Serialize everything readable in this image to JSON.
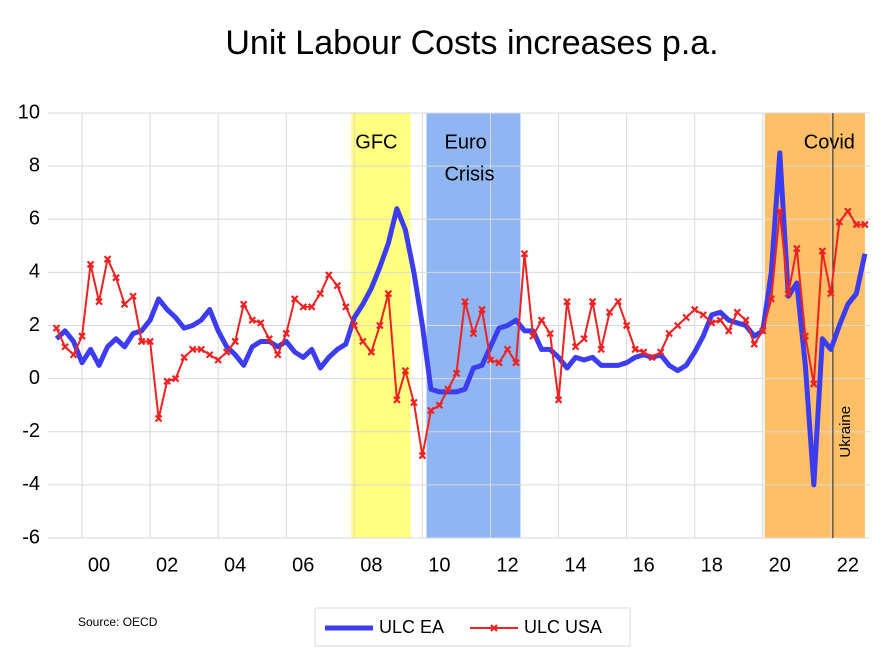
{
  "chart_data": {
    "type": "line",
    "title": "Unit Labour Costs increases p.a.",
    "source": "Source: OECD",
    "x": [
      1999.25,
      1999.5,
      1999.75,
      2000,
      2000.25,
      2000.5,
      2000.75,
      2001,
      2001.25,
      2001.5,
      2001.75,
      2002,
      2002.25,
      2002.5,
      2002.75,
      2003,
      2003.25,
      2003.5,
      2003.75,
      2004,
      2004.25,
      2004.5,
      2004.75,
      2005,
      2005.25,
      2005.5,
      2005.75,
      2006,
      2006.25,
      2006.5,
      2006.75,
      2007,
      2007.25,
      2007.5,
      2007.75,
      2008,
      2008.25,
      2008.5,
      2008.75,
      2009,
      2009.25,
      2009.5,
      2009.75,
      2010,
      2010.25,
      2010.5,
      2010.75,
      2011,
      2011.25,
      2011.5,
      2011.75,
      2012,
      2012.25,
      2012.5,
      2012.75,
      2013,
      2013.25,
      2013.5,
      2013.75,
      2014,
      2014.25,
      2014.5,
      2014.75,
      2015,
      2015.25,
      2015.5,
      2015.75,
      2016,
      2016.25,
      2016.5,
      2016.75,
      2017,
      2017.25,
      2017.5,
      2017.75,
      2018,
      2018.25,
      2018.5,
      2018.75,
      2019,
      2019.25,
      2019.5,
      2019.75,
      2020,
      2020.25,
      2020.5,
      2020.75,
      2021,
      2021.25,
      2021.5,
      2021.75,
      2022,
      2022.25,
      2022.5,
      2022.75,
      2023
    ],
    "series": [
      {
        "name": "ULC EA",
        "color": "#3c3cf0",
        "width": 5,
        "marker": null,
        "values": [
          1.5,
          1.8,
          1.4,
          0.6,
          1.1,
          0.5,
          1.2,
          1.5,
          1.2,
          1.7,
          1.8,
          2.2,
          3.0,
          2.6,
          2.3,
          1.9,
          2.0,
          2.2,
          2.6,
          1.8,
          1.2,
          0.9,
          0.5,
          1.2,
          1.4,
          1.4,
          1.2,
          1.4,
          1.0,
          0.8,
          1.1,
          0.4,
          0.8,
          1.1,
          1.3,
          2.3,
          2.8,
          3.4,
          4.2,
          5.1,
          6.4,
          5.6,
          4.0,
          2.0,
          -0.4,
          -0.5,
          -0.5,
          -0.5,
          -0.4,
          0.4,
          0.5,
          1.2,
          1.9,
          2.0,
          2.2,
          1.8,
          1.8,
          1.1,
          1.1,
          0.8,
          0.4,
          0.8,
          0.7,
          0.8,
          0.5,
          0.5,
          0.5,
          0.6,
          0.8,
          0.9,
          0.8,
          0.9,
          0.5,
          0.3,
          0.5,
          1.0,
          1.6,
          2.4,
          2.5,
          2.2,
          2.1,
          2.0,
          1.6,
          1.8,
          4.0,
          8.5,
          3.1,
          3.6,
          0.5,
          -4.0,
          1.5,
          1.1,
          2.0,
          2.8,
          3.2,
          4.7
        ]
      },
      {
        "name": "ULC USA",
        "color": "#ee2222",
        "width": 2,
        "marker": "x",
        "values": [
          1.9,
          1.2,
          0.9,
          1.6,
          4.3,
          2.9,
          4.5,
          3.8,
          2.8,
          3.1,
          1.4,
          1.4,
          -1.5,
          -0.1,
          0.0,
          0.8,
          1.1,
          1.1,
          0.9,
          0.7,
          1.0,
          1.4,
          2.8,
          2.2,
          2.1,
          1.5,
          0.9,
          1.7,
          3.0,
          2.7,
          2.7,
          3.2,
          3.9,
          3.5,
          2.7,
          2.0,
          1.4,
          1.0,
          2.0,
          3.2,
          -0.8,
          0.3,
          -0.9,
          -2.9,
          -1.2,
          -1.0,
          -0.4,
          0.2,
          2.9,
          1.7,
          2.6,
          0.7,
          0.6,
          1.1,
          0.6,
          4.7,
          1.6,
          2.2,
          1.7,
          -0.8,
          2.9,
          1.2,
          1.5,
          2.9,
          1.1,
          2.5,
          2.9,
          2.0,
          1.1,
          1.0,
          0.8,
          1.0,
          1.7,
          2.0,
          2.3,
          2.6,
          2.4,
          2.1,
          2.2,
          1.8,
          2.5,
          2.2,
          1.3,
          1.8,
          3.0,
          6.3,
          3.2,
          4.9,
          1.6,
          -0.2,
          4.8,
          3.2,
          5.9,
          6.3,
          5.8,
          5.8
        ]
      }
    ],
    "xlim": [
      1999,
      2023.15
    ],
    "xticks": [
      {
        "value": 2000,
        "label": "00"
      },
      {
        "value": 2002,
        "label": "02"
      },
      {
        "value": 2004,
        "label": "04"
      },
      {
        "value": 2006,
        "label": "06"
      },
      {
        "value": 2008,
        "label": "08"
      },
      {
        "value": 2010,
        "label": "10"
      },
      {
        "value": 2012,
        "label": "12"
      },
      {
        "value": 2014,
        "label": "14"
      },
      {
        "value": 2016,
        "label": "16"
      },
      {
        "value": 2018,
        "label": "18"
      },
      {
        "value": 2020,
        "label": "20"
      },
      {
        "value": 2022,
        "label": "22"
      }
    ],
    "ylim": [
      -6,
      10
    ],
    "yticks": [
      -6,
      -4,
      -2,
      0,
      2,
      4,
      6,
      8,
      10
    ],
    "grid": true,
    "regions": [
      {
        "label": [
          "GFC"
        ],
        "start": 2007.91,
        "end": 2009.65,
        "color": "#ffff80"
      },
      {
        "label": [
          "Euro",
          "Crisis"
        ],
        "start": 2010.12,
        "end": 2012.88,
        "color": "#8fb6f2"
      },
      {
        "label": [
          "Covid"
        ],
        "start": 2020.06,
        "end": 2023.0,
        "color": "#ffbf66"
      }
    ],
    "vlines": [
      {
        "label": "Ukraine",
        "x": 2022.06,
        "color": "#222222"
      }
    ],
    "legend": "bottom"
  }
}
